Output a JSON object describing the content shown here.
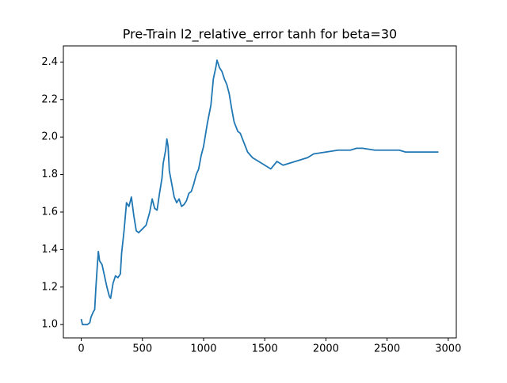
{
  "chart_data": {
    "type": "line",
    "title": "Pre-Train l2_relative_error tanh for beta=30",
    "x": [
      0,
      10,
      50,
      70,
      80,
      100,
      110,
      120,
      130,
      140,
      150,
      170,
      190,
      210,
      230,
      240,
      260,
      280,
      300,
      320,
      330,
      350,
      370,
      390,
      410,
      430,
      450,
      470,
      500,
      530,
      560,
      580,
      600,
      620,
      640,
      660,
      670,
      690,
      700,
      710,
      720,
      740,
      760,
      780,
      800,
      820,
      840,
      860,
      880,
      900,
      920,
      940,
      960,
      980,
      1000,
      1030,
      1060,
      1080,
      1100,
      1110,
      1130,
      1150,
      1170,
      1190,
      1210,
      1230,
      1250,
      1280,
      1300,
      1330,
      1360,
      1400,
      1450,
      1500,
      1550,
      1600,
      1650,
      1700,
      1750,
      1800,
      1850,
      1900,
      2000,
      2100,
      2200,
      2250,
      2300,
      2400,
      2500,
      2600,
      2650,
      2700,
      2800,
      2920
    ],
    "values": [
      1.03,
      1.0,
      1.0,
      1.01,
      1.04,
      1.07,
      1.08,
      1.2,
      1.3,
      1.39,
      1.34,
      1.32,
      1.26,
      1.2,
      1.15,
      1.14,
      1.22,
      1.26,
      1.25,
      1.27,
      1.38,
      1.5,
      1.65,
      1.63,
      1.68,
      1.58,
      1.5,
      1.49,
      1.51,
      1.53,
      1.6,
      1.67,
      1.62,
      1.61,
      1.7,
      1.78,
      1.86,
      1.93,
      1.99,
      1.95,
      1.82,
      1.75,
      1.68,
      1.65,
      1.67,
      1.63,
      1.64,
      1.66,
      1.7,
      1.71,
      1.75,
      1.8,
      1.83,
      1.9,
      1.95,
      2.07,
      2.17,
      2.31,
      2.37,
      2.41,
      2.37,
      2.35,
      2.31,
      2.28,
      2.23,
      2.15,
      2.08,
      2.03,
      2.02,
      1.97,
      1.92,
      1.89,
      1.87,
      1.85,
      1.83,
      1.87,
      1.85,
      1.86,
      1.87,
      1.88,
      1.89,
      1.91,
      1.92,
      1.93,
      1.93,
      1.94,
      1.94,
      1.93,
      1.93,
      1.93,
      1.92,
      1.92,
      1.92,
      1.92
    ],
    "color": "#1f77b4",
    "xlim": [
      -146,
      3066
    ],
    "xticks": [
      0,
      500,
      1000,
      1500,
      2000,
      2500,
      3000
    ],
    "ylim": [
      0.929,
      2.486
    ],
    "yticks": [
      {
        "value": 1.0,
        "label": "1.0"
      },
      {
        "value": 1.2,
        "label": "1.2"
      },
      {
        "value": 1.4,
        "label": "1.4"
      },
      {
        "value": 1.6,
        "label": "1.6"
      },
      {
        "value": 1.8,
        "label": "1.8"
      },
      {
        "value": 2.0,
        "label": "2.0"
      },
      {
        "value": 2.2,
        "label": "2.2"
      },
      {
        "value": 2.4,
        "label": "2.4"
      }
    ]
  }
}
